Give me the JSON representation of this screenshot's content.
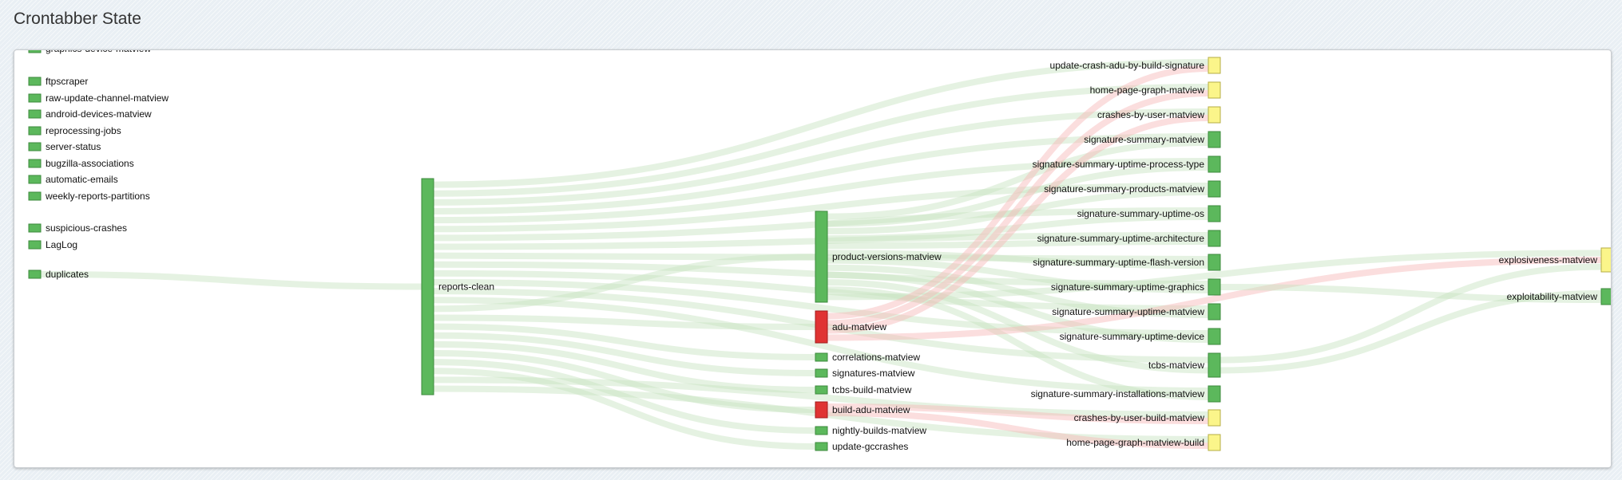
{
  "page": {
    "title": "Crontabber State"
  },
  "status_colors": {
    "ok": "#5cb85c",
    "error": "#e03333",
    "pending": "#fbf58a"
  },
  "link_colors": {
    "ok": "#c6e3bf",
    "error": "#f6b6b6"
  },
  "diagram": {
    "nodes": [
      {
        "id": "graphics-device-matview",
        "label": "graphics-device-matview",
        "status": "ok"
      },
      {
        "id": "ftpscraper",
        "label": "ftpscraper",
        "status": "ok"
      },
      {
        "id": "raw-update-channel-matview",
        "label": "raw-update-channel-matview",
        "status": "ok"
      },
      {
        "id": "android-devices-matview",
        "label": "android-devices-matview",
        "status": "ok"
      },
      {
        "id": "reprocessing-jobs",
        "label": "reprocessing-jobs",
        "status": "ok"
      },
      {
        "id": "server-status",
        "label": "server-status",
        "status": "ok"
      },
      {
        "id": "bugzilla-associations",
        "label": "bugzilla-associations",
        "status": "ok"
      },
      {
        "id": "automatic-emails",
        "label": "automatic-emails",
        "status": "ok"
      },
      {
        "id": "weekly-reports-partitions",
        "label": "weekly-reports-partitions",
        "status": "ok"
      },
      {
        "id": "suspicious-crashes",
        "label": "suspicious-crashes",
        "status": "ok"
      },
      {
        "id": "LagLog",
        "label": "LagLog",
        "status": "ok"
      },
      {
        "id": "duplicates",
        "label": "duplicates",
        "status": "ok"
      },
      {
        "id": "reports-clean",
        "label": "reports-clean",
        "status": "ok"
      },
      {
        "id": "product-versions-matview",
        "label": "product-versions-matview",
        "status": "ok"
      },
      {
        "id": "adu-matview",
        "label": "adu-matview",
        "status": "error"
      },
      {
        "id": "correlations-matview",
        "label": "correlations-matview",
        "status": "ok"
      },
      {
        "id": "signatures-matview",
        "label": "signatures-matview",
        "status": "ok"
      },
      {
        "id": "tcbs-build-matview",
        "label": "tcbs-build-matview",
        "status": "ok"
      },
      {
        "id": "build-adu-matview",
        "label": "build-adu-matview",
        "status": "error"
      },
      {
        "id": "nightly-builds-matview",
        "label": "nightly-builds-matview",
        "status": "ok"
      },
      {
        "id": "update-gccrashes",
        "label": "update-gccrashes",
        "status": "ok"
      },
      {
        "id": "update-crash-adu-by-build-signature",
        "label": "update-crash-adu-by-build-signature",
        "status": "pending"
      },
      {
        "id": "home-page-graph-matview",
        "label": "home-page-graph-matview",
        "status": "pending"
      },
      {
        "id": "crashes-by-user-matview",
        "label": "crashes-by-user-matview",
        "status": "pending"
      },
      {
        "id": "signature-summary-matview",
        "label": "signature-summary-matview",
        "status": "ok"
      },
      {
        "id": "signature-summary-uptime-process-type",
        "label": "signature-summary-uptime-process-type",
        "status": "ok"
      },
      {
        "id": "signature-summary-products-matview",
        "label": "signature-summary-products-matview",
        "status": "ok"
      },
      {
        "id": "signature-summary-uptime-os",
        "label": "signature-summary-uptime-os",
        "status": "ok"
      },
      {
        "id": "signature-summary-uptime-architecture",
        "label": "signature-summary-uptime-architecture",
        "status": "ok"
      },
      {
        "id": "signature-summary-uptime-flash-version",
        "label": "signature-summary-uptime-flash-version",
        "status": "ok"
      },
      {
        "id": "signature-summary-uptime-graphics",
        "label": "signature-summary-uptime-graphics",
        "status": "ok"
      },
      {
        "id": "signature-summary-uptime-matview",
        "label": "signature-summary-uptime-matview",
        "status": "ok"
      },
      {
        "id": "signature-summary-uptime-device",
        "label": "signature-summary-uptime-device",
        "status": "ok"
      },
      {
        "id": "tcbs-matview",
        "label": "tcbs-matview",
        "status": "ok"
      },
      {
        "id": "signature-summary-installations-matview",
        "label": "signature-summary-installations-matview",
        "status": "ok"
      },
      {
        "id": "crashes-by-user-build-matview",
        "label": "crashes-by-user-build-matview",
        "status": "pending"
      },
      {
        "id": "home-page-graph-matview-build",
        "label": "home-page-graph-matview-build",
        "status": "pending"
      },
      {
        "id": "explosiveness-matview",
        "label": "explosiveness-matview",
        "status": "pending"
      },
      {
        "id": "exploitability-matview",
        "label": "exploitability-matview",
        "status": "ok"
      }
    ],
    "links": [
      {
        "source": "duplicates",
        "target": "reports-clean"
      },
      {
        "source": "reports-clean",
        "target": "update-crash-adu-by-build-signature"
      },
      {
        "source": "reports-clean",
        "target": "home-page-graph-matview"
      },
      {
        "source": "reports-clean",
        "target": "crashes-by-user-matview"
      },
      {
        "source": "reports-clean",
        "target": "signature-summary-matview"
      },
      {
        "source": "reports-clean",
        "target": "signature-summary-uptime-process-type"
      },
      {
        "source": "reports-clean",
        "target": "signature-summary-products-matview"
      },
      {
        "source": "reports-clean",
        "target": "signature-summary-uptime-os"
      },
      {
        "source": "reports-clean",
        "target": "signature-summary-uptime-architecture"
      },
      {
        "source": "reports-clean",
        "target": "signature-summary-uptime-flash-version"
      },
      {
        "source": "reports-clean",
        "target": "signature-summary-uptime-graphics"
      },
      {
        "source": "reports-clean",
        "target": "signature-summary-uptime-matview"
      },
      {
        "source": "reports-clean",
        "target": "signature-summary-uptime-device"
      },
      {
        "source": "reports-clean",
        "target": "tcbs-matview"
      },
      {
        "source": "reports-clean",
        "target": "signature-summary-installations-matview"
      },
      {
        "source": "reports-clean",
        "target": "product-versions-matview"
      },
      {
        "source": "reports-clean",
        "target": "adu-matview"
      },
      {
        "source": "reports-clean",
        "target": "correlations-matview"
      },
      {
        "source": "reports-clean",
        "target": "signatures-matview"
      },
      {
        "source": "reports-clean",
        "target": "tcbs-build-matview"
      },
      {
        "source": "reports-clean",
        "target": "build-adu-matview"
      },
      {
        "source": "reports-clean",
        "target": "nightly-builds-matview"
      },
      {
        "source": "reports-clean",
        "target": "update-gccrashes"
      },
      {
        "source": "reports-clean",
        "target": "crashes-by-user-build-matview"
      },
      {
        "source": "reports-clean",
        "target": "home-page-graph-matview-build"
      },
      {
        "source": "product-versions-matview",
        "target": "signature-summary-matview"
      },
      {
        "source": "product-versions-matview",
        "target": "signature-summary-uptime-process-type"
      },
      {
        "source": "product-versions-matview",
        "target": "signature-summary-products-matview"
      },
      {
        "source": "product-versions-matview",
        "target": "signature-summary-uptime-os"
      },
      {
        "source": "product-versions-matview",
        "target": "signature-summary-uptime-architecture"
      },
      {
        "source": "product-versions-matview",
        "target": "signature-summary-uptime-flash-version"
      },
      {
        "source": "product-versions-matview",
        "target": "signature-summary-uptime-graphics"
      },
      {
        "source": "product-versions-matview",
        "target": "signature-summary-uptime-matview"
      },
      {
        "source": "product-versions-matview",
        "target": "signature-summary-uptime-device"
      },
      {
        "source": "product-versions-matview",
        "target": "tcbs-matview"
      },
      {
        "source": "product-versions-matview",
        "target": "signature-summary-installations-matview"
      },
      {
        "source": "product-versions-matview",
        "target": "explosiveness-matview"
      },
      {
        "source": "adu-matview",
        "target": "update-crash-adu-by-build-signature",
        "error": true
      },
      {
        "source": "adu-matview",
        "target": "home-page-graph-matview",
        "error": true
      },
      {
        "source": "adu-matview",
        "target": "crashes-by-user-matview",
        "error": true
      },
      {
        "source": "adu-matview",
        "target": "explosiveness-matview",
        "error": true
      },
      {
        "source": "build-adu-matview",
        "target": "crashes-by-user-build-matview",
        "error": true
      },
      {
        "source": "build-adu-matview",
        "target": "home-page-graph-matview-build",
        "error": true
      },
      {
        "source": "tcbs-matview",
        "target": "explosiveness-matview"
      },
      {
        "source": "tcbs-matview",
        "target": "exploitability-matview"
      },
      {
        "source": "signature-summary-uptime-graphics",
        "target": "exploitability-matview"
      }
    ]
  }
}
